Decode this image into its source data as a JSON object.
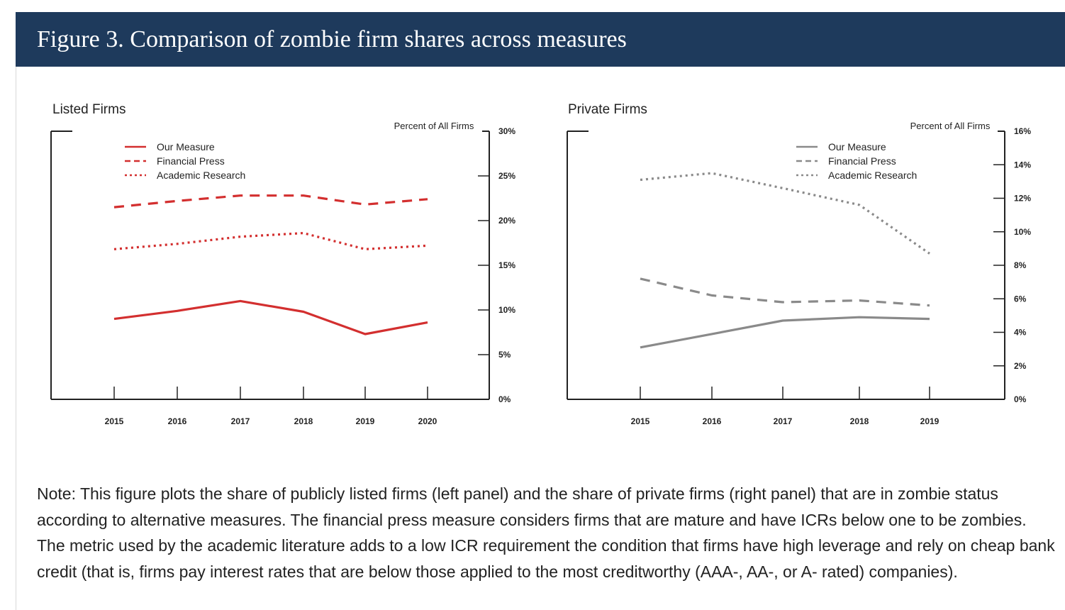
{
  "figure": {
    "title": "Figure 3. Comparison of zombie firm shares across measures",
    "note": "Note: This figure plots the share of publicly listed firms (left panel) and the share of private firms (right panel) that are in zombie status according to alternative measures. The financial press measure considers firms that are mature and have ICRs below one to be zombies. The metric used by the academic literature adds to a low ICR requirement the condition that firms have high leverage and rely on cheap bank credit (that is, firms pay interest rates that are below those applied to the most creditworthy (AAA-, AA-, or A- rated) companies)."
  },
  "chart_data": [
    {
      "type": "line",
      "title": "Listed Firms",
      "ylabel": "Percent of All Firms",
      "categories": [
        "2015",
        "2016",
        "2017",
        "2018",
        "2019",
        "2020"
      ],
      "ylim": [
        0,
        30
      ],
      "yticks": [
        "0%",
        "5%",
        "10%",
        "15%",
        "20%",
        "25%",
        "30%"
      ],
      "color": "#d32f2f",
      "series": [
        {
          "name": "Our Measure",
          "style": "solid",
          "values": [
            9.0,
            9.9,
            11.0,
            9.8,
            7.3,
            8.6
          ]
        },
        {
          "name": "Financial Press",
          "style": "dashed",
          "values": [
            21.5,
            22.2,
            22.8,
            22.8,
            21.8,
            22.4
          ]
        },
        {
          "name": "Academic Research",
          "style": "dotted",
          "values": [
            16.8,
            17.4,
            18.2,
            18.6,
            16.8,
            17.2
          ]
        }
      ]
    },
    {
      "type": "line",
      "title": "Private Firms",
      "ylabel": "Percent of All Firms",
      "categories": [
        "2015",
        "2016",
        "2017",
        "2018",
        "2019"
      ],
      "ylim": [
        0,
        16
      ],
      "yticks": [
        "0%",
        "2%",
        "4%",
        "6%",
        "8%",
        "10%",
        "12%",
        "14%",
        "16%"
      ],
      "color": "#8a8a8a",
      "series": [
        {
          "name": "Our Measure",
          "style": "solid",
          "values": [
            3.1,
            3.9,
            4.7,
            4.9,
            4.8
          ]
        },
        {
          "name": "Financial Press",
          "style": "dashed",
          "values": [
            7.2,
            6.2,
            5.8,
            5.9,
            5.6
          ]
        },
        {
          "name": "Academic Research",
          "style": "dotted",
          "values": [
            13.1,
            13.5,
            12.6,
            11.6,
            8.7
          ]
        }
      ]
    }
  ]
}
